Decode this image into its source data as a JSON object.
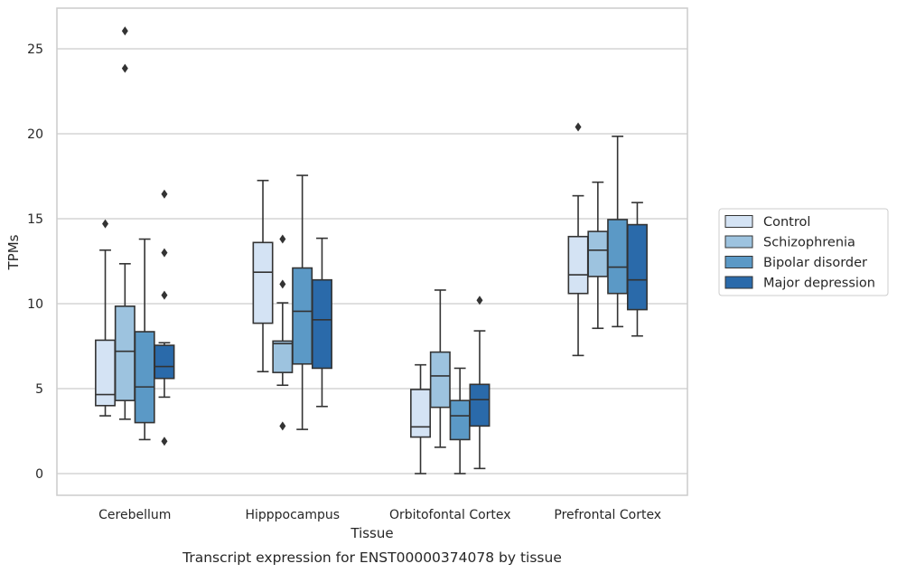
{
  "chart_data": {
    "type": "box",
    "caption": "Transcript expression for ENST00000374078 by tissue",
    "xlabel": "Tissue",
    "ylabel": "TPMs",
    "ylim": [
      -1.2,
      27.2
    ],
    "yticks": [
      0,
      5,
      10,
      15,
      20,
      25
    ],
    "grid": "horizontal",
    "legend_position": "right",
    "categories": [
      "Cerebellum",
      "Hipppocampus",
      "Orbitofontal Cortex",
      "Prefrontal Cortex"
    ],
    "series": [
      {
        "name": "Control",
        "color": "#d4e3f4",
        "boxes": [
          {
            "whisker_low": 3.4,
            "q1": 4.0,
            "median": 4.65,
            "q3": 7.85,
            "whisker_high": 13.15,
            "outliers": [
              14.7
            ]
          },
          {
            "whisker_low": 6.0,
            "q1": 8.85,
            "median": 11.85,
            "q3": 13.6,
            "whisker_high": 17.25,
            "outliers": []
          },
          {
            "whisker_low": 0.0,
            "q1": 2.15,
            "median": 2.75,
            "q3": 4.95,
            "whisker_high": 6.4,
            "outliers": []
          },
          {
            "whisker_low": 6.95,
            "q1": 10.6,
            "median": 11.7,
            "q3": 13.95,
            "whisker_high": 16.35,
            "outliers": [
              20.4
            ]
          }
        ]
      },
      {
        "name": "Schizophrenia",
        "color": "#9dc3df",
        "boxes": [
          {
            "whisker_low": 3.2,
            "q1": 4.3,
            "median": 7.2,
            "q3": 9.85,
            "whisker_high": 12.35,
            "outliers": [
              23.85,
              26.05
            ]
          },
          {
            "whisker_low": 5.2,
            "q1": 5.95,
            "median": 7.65,
            "q3": 7.8,
            "whisker_high": 10.05,
            "outliers": [
              2.8,
              11.15,
              13.8
            ]
          },
          {
            "whisker_low": 1.55,
            "q1": 3.9,
            "median": 5.75,
            "q3": 7.15,
            "whisker_high": 10.8,
            "outliers": []
          },
          {
            "whisker_low": 8.55,
            "q1": 11.6,
            "median": 13.15,
            "q3": 14.25,
            "whisker_high": 17.15,
            "outliers": []
          }
        ]
      },
      {
        "name": "Bipolar disorder",
        "color": "#5b99c6",
        "boxes": [
          {
            "whisker_low": 2.0,
            "q1": 3.0,
            "median": 5.1,
            "q3": 8.35,
            "whisker_high": 13.8,
            "outliers": []
          },
          {
            "whisker_low": 2.6,
            "q1": 6.45,
            "median": 9.55,
            "q3": 12.1,
            "whisker_high": 17.55,
            "outliers": []
          },
          {
            "whisker_low": 0.0,
            "q1": 2.0,
            "median": 3.4,
            "q3": 4.3,
            "whisker_high": 6.2,
            "outliers": []
          },
          {
            "whisker_low": 8.65,
            "q1": 10.6,
            "median": 12.15,
            "q3": 14.95,
            "whisker_high": 19.85,
            "outliers": []
          }
        ]
      },
      {
        "name": "Major depression",
        "color": "#2a6aaa",
        "boxes": [
          {
            "whisker_low": 4.5,
            "q1": 5.6,
            "median": 6.3,
            "q3": 7.55,
            "whisker_high": 7.7,
            "outliers": [
              1.9,
              10.5,
              13.0,
              16.45
            ]
          },
          {
            "whisker_low": 3.95,
            "q1": 6.2,
            "median": 9.05,
            "q3": 11.4,
            "whisker_high": 13.85,
            "outliers": []
          },
          {
            "whisker_low": 0.3,
            "q1": 2.8,
            "median": 4.35,
            "q3": 5.25,
            "whisker_high": 8.4,
            "outliers": [
              10.2
            ]
          },
          {
            "whisker_low": 8.1,
            "q1": 9.65,
            "median": 11.4,
            "q3": 14.65,
            "whisker_high": 15.95,
            "outliers": []
          }
        ]
      }
    ]
  }
}
